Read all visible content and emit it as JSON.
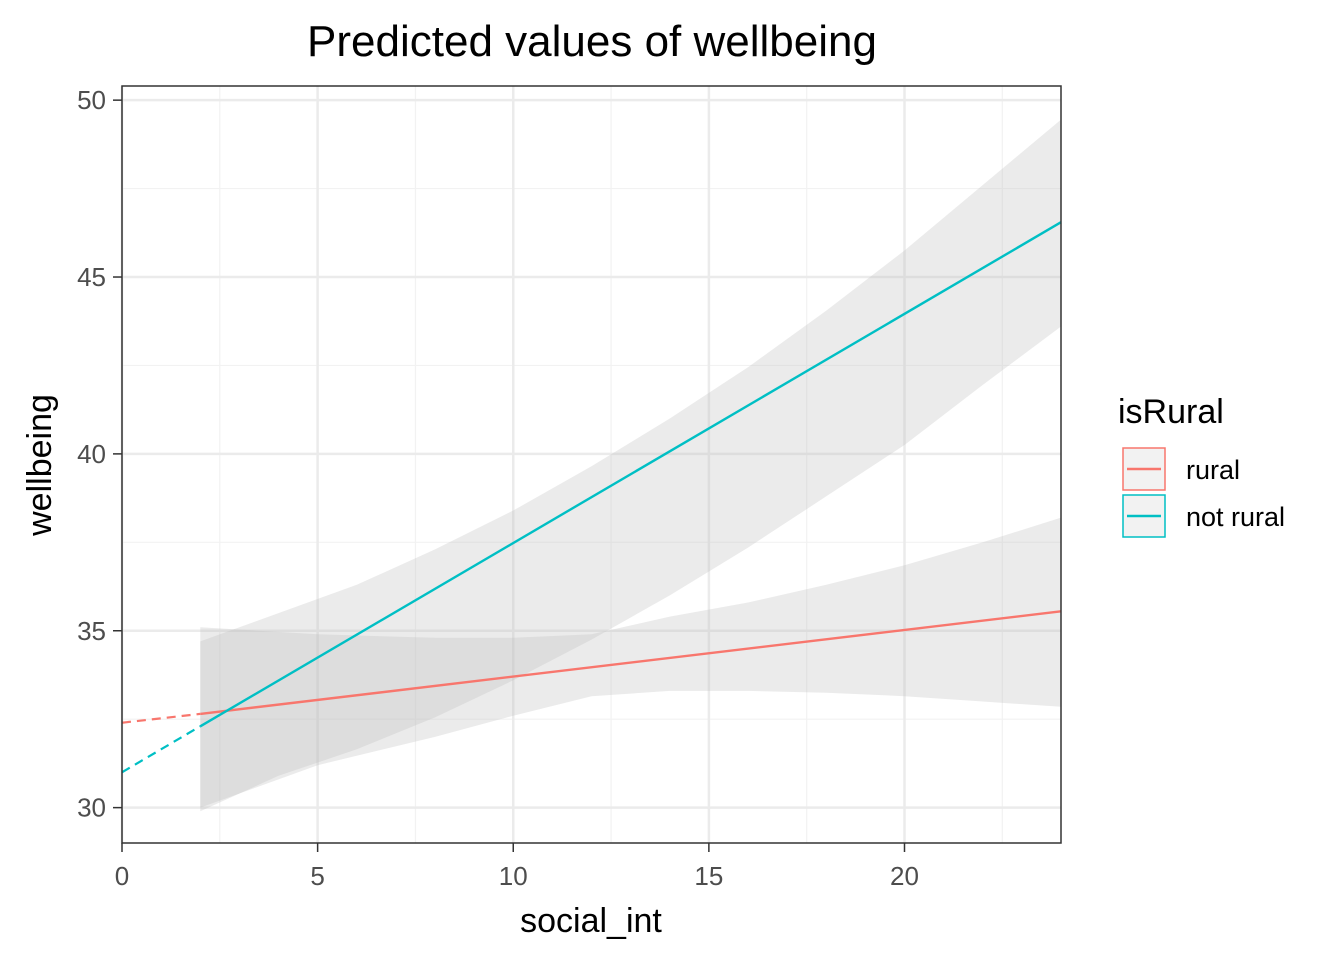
{
  "chart_data": {
    "type": "line",
    "title": "Predicted values of wellbeing",
    "xlabel": "social_int",
    "ylabel": "wellbeing",
    "xlim": [
      0,
      24
    ],
    "ylim": [
      29,
      50.4
    ],
    "x_ticks": [
      0,
      5,
      10,
      15,
      20
    ],
    "x_tick_labels": [
      "0",
      "5",
      "10",
      "15",
      "20"
    ],
    "y_ticks": [
      30,
      35,
      40,
      45,
      50
    ],
    "y_tick_labels": [
      "30",
      "35",
      "40",
      "45",
      "50"
    ],
    "grid": true,
    "legend": {
      "title": "isRural",
      "position": "right"
    },
    "series": [
      {
        "name": "rural",
        "color": "#F8766D",
        "extrapolated": {
          "x": [
            0,
            2
          ],
          "y": [
            32.4,
            32.65
          ]
        },
        "fitted": {
          "x": [
            2,
            24
          ],
          "y": [
            32.65,
            35.55
          ]
        },
        "ci": {
          "x": [
            2,
            5,
            8,
            10,
            12,
            14,
            16,
            18,
            20,
            22,
            24
          ],
          "lower": [
            30.0,
            31.2,
            32.0,
            32.6,
            33.15,
            33.3,
            33.3,
            33.25,
            33.15,
            33.0,
            32.85
          ],
          "upper": [
            35.1,
            34.9,
            34.8,
            34.8,
            34.9,
            35.4,
            35.8,
            36.3,
            36.85,
            37.5,
            38.2
          ]
        }
      },
      {
        "name": "not rural",
        "color": "#00BFC4",
        "extrapolated": {
          "x": [
            0,
            2
          ],
          "y": [
            31.0,
            32.3
          ]
        },
        "fitted": {
          "x": [
            2,
            24
          ],
          "y": [
            32.3,
            46.55
          ]
        },
        "ci": {
          "x": [
            2,
            4,
            6,
            8,
            10,
            12,
            14,
            16,
            18,
            20,
            22,
            24
          ],
          "lower": [
            29.9,
            30.9,
            31.65,
            32.55,
            33.6,
            34.75,
            36.0,
            37.35,
            38.8,
            40.25,
            41.95,
            43.6
          ],
          "upper": [
            34.7,
            35.5,
            36.3,
            37.3,
            38.4,
            39.65,
            41.0,
            42.45,
            44.05,
            45.75,
            47.6,
            49.45
          ]
        }
      }
    ]
  }
}
